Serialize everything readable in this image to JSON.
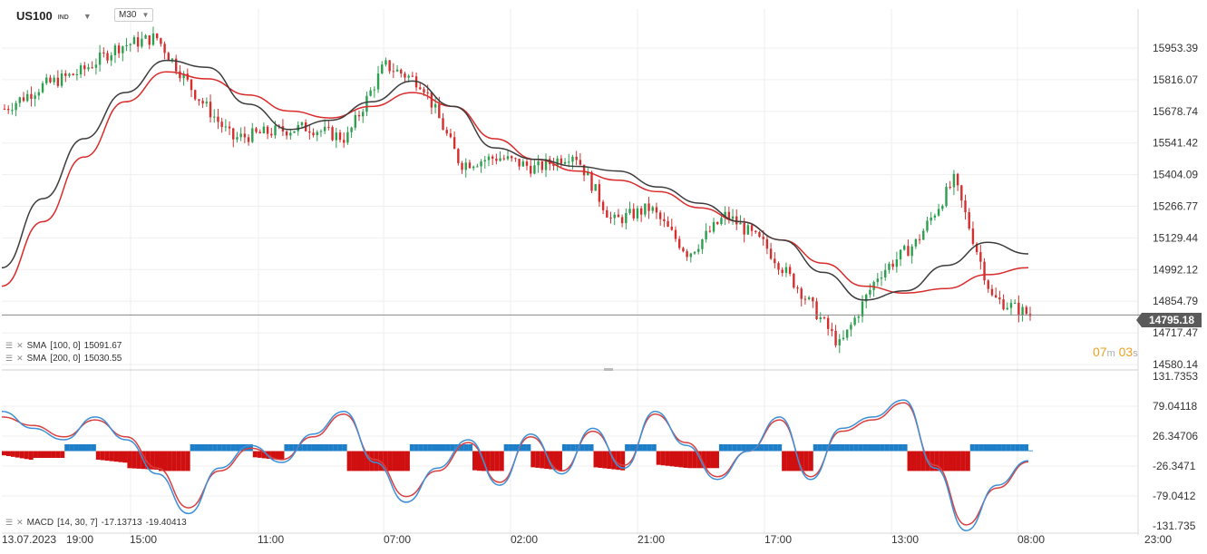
{
  "header": {
    "symbol": "US100",
    "symbol_sub": "IND",
    "timeframe": "M30"
  },
  "indicators": {
    "sma100": {
      "label": "SMA",
      "params": "[100, 0]",
      "value": "15091.67"
    },
    "sma200": {
      "label": "SMA",
      "params": "[200, 0]",
      "value": "15030.55"
    },
    "macd": {
      "label": "MACD",
      "params": "[14, 30, 7]",
      "v1": "-17.13713",
      "v2": "-19.40413"
    }
  },
  "timer": {
    "m": "07",
    "mu": "m",
    "s": "03",
    "su": "s"
  },
  "last_price": "14795.18",
  "colors": {
    "up": "#2e9e4f",
    "down": "#d32f2f",
    "sma100": "#3c3c3c",
    "sma200": "#d92b2b",
    "macd_hist_pos": "#1e7fc8",
    "macd_hist_neg": "#d01010",
    "macd_line": "#3d8fd8",
    "signal_line": "#d84040"
  },
  "chart_data": [
    {
      "type": "line",
      "title": "US100 M30",
      "price_labels": [
        "15953.39",
        "15816.07",
        "15678.74",
        "15541.42",
        "15404.09",
        "15266.77",
        "15129.44",
        "14992.12",
        "14854.79",
        "14717.47",
        "14580.14"
      ],
      "ylim": [
        14580.14,
        16050
      ],
      "x_labels": [
        "13.07.2023",
        "19:00",
        "15:00",
        "11:00",
        "07:00",
        "02:00",
        "21:00",
        "17:00",
        "13:00",
        "08:00",
        "23:00"
      ],
      "series": [
        {
          "name": "SMA [100, 0]",
          "values": [
            15000,
            15300,
            15560,
            15760,
            15900,
            15870,
            15710,
            15600,
            15640,
            15720,
            15810,
            15700,
            15520,
            15470,
            15440,
            15420,
            15350,
            15280,
            15200,
            15120,
            14980,
            14860,
            14900,
            15010,
            15110,
            15060
          ]
        },
        {
          "name": "SMA [200, 0]",
          "values": [
            14920,
            15200,
            15480,
            15720,
            15850,
            15820,
            15750,
            15680,
            15650,
            15700,
            15760,
            15700,
            15560,
            15470,
            15420,
            15380,
            15330,
            15260,
            15200,
            15120,
            15020,
            14920,
            14890,
            14910,
            14970,
            15000
          ]
        },
        {
          "name": "Price",
          "values": [
            15690,
            15790,
            15850,
            15960,
            16000,
            15760,
            15560,
            15590,
            15610,
            15560,
            15880,
            15800,
            15450,
            15480,
            15430,
            15500,
            15200,
            15260,
            15060,
            15230,
            15100,
            14890,
            14660,
            14970,
            15110,
            15380,
            14870,
            14795
          ]
        }
      ]
    },
    {
      "type": "line",
      "title": "MACD [14, 30, 7]",
      "price_labels": [
        "131.7353",
        "79.04118",
        "26.34706",
        "-26.3471",
        "-79.0412",
        "-131.735"
      ],
      "ylim": [
        -131.735,
        131.7353
      ],
      "series": [
        {
          "name": "MACD",
          "values": [
            70,
            40,
            20,
            60,
            20,
            -40,
            -110,
            -30,
            10,
            -20,
            30,
            70,
            -20,
            -90,
            -30,
            20,
            -60,
            30,
            -40,
            40,
            -30,
            70,
            10,
            -50,
            0,
            60,
            -50,
            40,
            60,
            90,
            -30,
            -140,
            -60,
            -17
          ]
        },
        {
          "name": "Signal",
          "values": [
            60,
            45,
            25,
            55,
            25,
            -30,
            -100,
            -35,
            5,
            -15,
            25,
            65,
            -15,
            -80,
            -35,
            15,
            -55,
            25,
            -35,
            35,
            -25,
            65,
            15,
            -45,
            0,
            55,
            -45,
            35,
            55,
            85,
            -25,
            -130,
            -65,
            -19
          ]
        }
      ]
    }
  ]
}
